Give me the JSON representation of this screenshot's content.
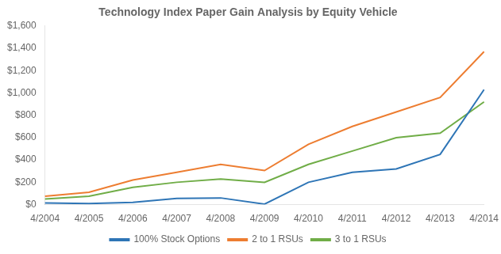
{
  "chart_data": {
    "type": "line",
    "title": "Technology Index Paper Gain Analysis by Equity Vehicle",
    "categories": [
      "4/2004",
      "4/2005",
      "4/2006",
      "4/2007",
      "4/2008",
      "4/2009",
      "4/2010",
      "4/2011",
      "4/2012",
      "4/2013",
      "4/2014"
    ],
    "series": [
      {
        "name": "100% Stock Options",
        "color": "#2E75B6",
        "values": [
          15,
          10,
          20,
          55,
          60,
          5,
          200,
          290,
          320,
          450,
          1030
        ]
      },
      {
        "name": "2 to 1 RSUs",
        "color": "#ED7D31",
        "values": [
          75,
          110,
          220,
          290,
          360,
          305,
          540,
          700,
          830,
          960,
          1370
        ]
      },
      {
        "name": "3 to 1 RSUs",
        "color": "#70AD47",
        "values": [
          50,
          75,
          155,
          200,
          230,
          200,
          360,
          480,
          600,
          640,
          920
        ]
      }
    ],
    "ylim": [
      0,
      1600
    ],
    "yticks": [
      {
        "value": 0,
        "label": "$0"
      },
      {
        "value": 200,
        "label": "$200"
      },
      {
        "value": 400,
        "label": "$400"
      },
      {
        "value": 600,
        "label": "$600"
      },
      {
        "value": 800,
        "label": "$800"
      },
      {
        "value": 1000,
        "label": "$1,000"
      },
      {
        "value": 1200,
        "label": "$1,200"
      },
      {
        "value": 1400,
        "label": "$1,400"
      },
      {
        "value": 1600,
        "label": "$1,600"
      }
    ],
    "grid": false,
    "legend": "bottom"
  }
}
